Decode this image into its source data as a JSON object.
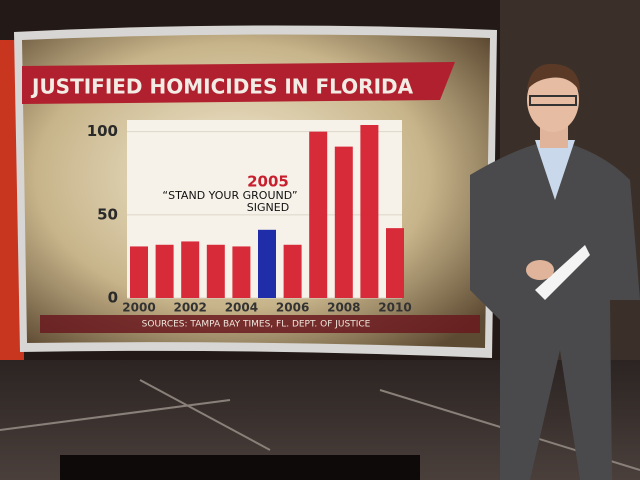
{
  "chart_data": {
    "type": "bar",
    "title": "JUSTIFIED HOMICIDES IN FLORIDA",
    "categories": [
      "2000",
      null,
      "2002",
      null,
      "2004",
      null,
      "2006",
      null,
      "2008",
      null,
      "2010"
    ],
    "values": [
      31,
      32,
      34,
      32,
      31,
      41,
      32,
      100,
      91,
      104,
      42
    ],
    "colors": [
      "#d82b3a",
      "#d82b3a",
      "#d82b3a",
      "#d82b3a",
      "#d82b3a",
      "#1f2ea8",
      "#d82b3a",
      "#d82b3a",
      "#d82b3a",
      "#d82b3a",
      "#d82b3a"
    ],
    "ylim": [
      0,
      107
    ],
    "yticks": [
      0,
      50,
      100
    ],
    "grid": true,
    "annotation": {
      "year": "2005",
      "line1": "“STAND YOUR GROUND”",
      "line2": "SIGNED"
    },
    "source": "SOURCES: TAMPA BAY TIMES, FL. DEPT. OF JUSTICE"
  }
}
